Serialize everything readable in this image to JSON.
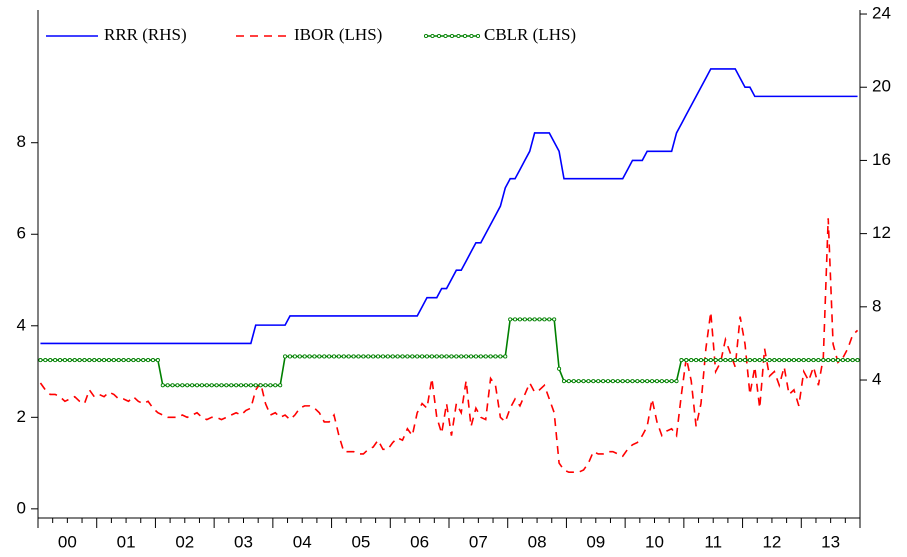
{
  "chart_data": {
    "type": "line",
    "categories": [
      "00",
      "01",
      "02",
      "03",
      "04",
      "05",
      "06",
      "07",
      "08",
      "09",
      "10",
      "11",
      "12",
      "13"
    ],
    "ylim": [
      -0.2,
      10.9
    ],
    "yticks": [
      0,
      2,
      4,
      6,
      8
    ],
    "y2lim": [
      -3.54,
      24.22
    ],
    "y2ticks": [
      4,
      8,
      12,
      16,
      20,
      24
    ],
    "legend": "upper left",
    "series": [
      {
        "name": "RRR (RHS)",
        "color": "#0000ff",
        "axis": "y2",
        "dash": "solid",
        "marker": "none",
        "values": [
          [
            6,
            6,
            6,
            6,
            6,
            6,
            6,
            6,
            6,
            6,
            6,
            6
          ],
          [
            6,
            6,
            6,
            6,
            6,
            6,
            6,
            6,
            6,
            6,
            6,
            6
          ],
          [
            6,
            6,
            6,
            6,
            6,
            6,
            6,
            6,
            6,
            6,
            6,
            6
          ],
          [
            6,
            6,
            6,
            6,
            6,
            6,
            6,
            6,
            7,
            7,
            7,
            7
          ],
          [
            7,
            7,
            7,
            7.5,
            7.5,
            7.5,
            7.5,
            7.5,
            7.5,
            7.5,
            7.5,
            7.5
          ],
          [
            7.5,
            7.5,
            7.5,
            7.5,
            7.5,
            7.5,
            7.5,
            7.5,
            7.5,
            7.5,
            7.5,
            7.5
          ],
          [
            7.5,
            7.5,
            7.5,
            7.5,
            7.5,
            7.5,
            8,
            8.5,
            8.5,
            8.5,
            9,
            9
          ],
          [
            9.5,
            10,
            10,
            10.5,
            11,
            11.5,
            11.5,
            12,
            12.5,
            13,
            13.5,
            14.5
          ],
          [
            15,
            15,
            15.5,
            16,
            16.5,
            17.5,
            17.5,
            17.5,
            17.5,
            17,
            16.5,
            15
          ],
          [
            15,
            15,
            15,
            15,
            15,
            15,
            15,
            15,
            15,
            15,
            15,
            15
          ],
          [
            15.5,
            16,
            16,
            16,
            16.5,
            16.5,
            16.5,
            16.5,
            16.5,
            16.5,
            17.5,
            18
          ],
          [
            18.5,
            19,
            19.5,
            20,
            20.5,
            21,
            21,
            21,
            21,
            21,
            21,
            20.5
          ],
          [
            20,
            20,
            19.5,
            19.5,
            19.5,
            19.5,
            19.5,
            19.5,
            19.5,
            19.5,
            19.5,
            19.5
          ],
          [
            19.5,
            19.5,
            19.5,
            19.5,
            19.5,
            19.5,
            19.5,
            19.5,
            19.5,
            19.5,
            19.5,
            19.5
          ]
        ]
      },
      {
        "name": "IBOR (LHS)",
        "color": "#ff0000",
        "axis": "y",
        "dash": "dashed",
        "marker": "none",
        "values": [
          [
            2.75,
            2.6,
            2.5,
            2.5,
            2.45,
            2.35,
            2.4,
            2.45,
            2.35,
            2.3,
            2.6,
            2.45
          ],
          [
            2.5,
            2.45,
            2.55,
            2.5,
            2.4,
            2.4,
            2.35,
            2.45,
            2.35,
            2.3,
            2.35,
            2.2
          ],
          [
            2.1,
            2.05,
            2.0,
            2.0,
            2.0,
            2.05,
            2.0,
            2.05,
            2.1,
            2.0,
            1.95,
            2.0
          ],
          [
            2.0,
            1.95,
            2.0,
            2.05,
            2.1,
            2.05,
            2.15,
            2.2,
            2.6,
            2.75,
            2.3,
            2.05
          ],
          [
            2.1,
            2.0,
            2.05,
            1.95,
            2.05,
            2.2,
            2.25,
            2.25,
            2.2,
            2.1,
            1.9,
            1.9
          ],
          [
            2.05,
            1.6,
            1.25,
            1.25,
            1.25,
            1.2,
            1.2,
            1.3,
            1.35,
            1.5,
            1.3,
            1.3
          ],
          [
            1.45,
            1.55,
            1.5,
            1.75,
            1.6,
            2.1,
            2.3,
            2.2,
            2.85,
            2.0,
            1.65,
            2.3
          ],
          [
            1.6,
            2.3,
            2.1,
            2.8,
            1.8,
            2.2,
            2.0,
            1.95,
            2.85,
            2.7,
            2.0,
            1.9
          ],
          [
            2.2,
            2.4,
            2.25,
            2.5,
            2.75,
            2.55,
            2.6,
            2.7,
            2.4,
            2.1,
            1.0,
            0.85
          ],
          [
            0.8,
            0.8,
            0.8,
            0.85,
            1.0,
            1.25,
            1.2,
            1.2,
            1.25,
            1.25,
            1.2,
            1.15
          ],
          [
            1.3,
            1.4,
            1.45,
            1.6,
            1.8,
            2.4,
            1.9,
            1.6,
            1.7,
            1.75,
            1.6,
            2.5
          ],
          [
            3.3,
            2.8,
            1.8,
            2.3,
            3.5,
            4.3,
            3.0,
            3.2,
            3.7,
            3.4,
            3.1,
            4.2
          ],
          [
            3.6,
            2.5,
            3.1,
            2.2,
            3.5,
            2.9,
            3.0,
            2.7,
            3.1,
            2.5,
            2.6,
            2.25
          ],
          [
            3.0,
            2.8,
            3.1,
            2.7,
            3.3,
            6.35,
            3.6,
            3.2,
            3.3,
            3.5,
            3.8,
            3.9
          ]
        ]
      },
      {
        "name": "CBLR (LHS)",
        "color": "#008000",
        "axis": "y",
        "dash": "solid",
        "marker": "circle",
        "values": [
          [
            3.25,
            3.25,
            3.25,
            3.25,
            3.25,
            3.25,
            3.25,
            3.25,
            3.25,
            3.25,
            3.25,
            3.25
          ],
          [
            3.25,
            3.25,
            3.25,
            3.25,
            3.25,
            3.25,
            3.25,
            3.25,
            3.25,
            3.25,
            3.25,
            3.25
          ],
          [
            3.25,
            2.7,
            2.7,
            2.7,
            2.7,
            2.7,
            2.7,
            2.7,
            2.7,
            2.7,
            2.7,
            2.7
          ],
          [
            2.7,
            2.7,
            2.7,
            2.7,
            2.7,
            2.7,
            2.7,
            2.7,
            2.7,
            2.7,
            2.7,
            2.7
          ],
          [
            2.7,
            2.7,
            3.33,
            3.33,
            3.33,
            3.33,
            3.33,
            3.33,
            3.33,
            3.33,
            3.33,
            3.33
          ],
          [
            3.33,
            3.33,
            3.33,
            3.33,
            3.33,
            3.33,
            3.33,
            3.33,
            3.33,
            3.33,
            3.33,
            3.33
          ],
          [
            3.33,
            3.33,
            3.33,
            3.33,
            3.33,
            3.33,
            3.33,
            3.33,
            3.33,
            3.33,
            3.33,
            3.33
          ],
          [
            3.33,
            3.33,
            3.33,
            3.33,
            3.33,
            3.33,
            3.33,
            3.33,
            3.33,
            3.33,
            3.33,
            3.33
          ],
          [
            4.14,
            4.14,
            4.14,
            4.14,
            4.14,
            4.14,
            4.14,
            4.14,
            4.14,
            4.14,
            3.06,
            2.79
          ],
          [
            2.79,
            2.79,
            2.79,
            2.79,
            2.79,
            2.79,
            2.79,
            2.79,
            2.79,
            2.79,
            2.79,
            2.79
          ],
          [
            2.79,
            2.79,
            2.79,
            2.79,
            2.79,
            2.79,
            2.79,
            2.79,
            2.79,
            2.79,
            2.79,
            3.25
          ],
          [
            3.25,
            3.25,
            3.25,
            3.25,
            3.25,
            3.25,
            3.25,
            3.25,
            3.25,
            3.25,
            3.25,
            3.25
          ],
          [
            3.25,
            3.25,
            3.25,
            3.25,
            3.25,
            3.25,
            3.25,
            3.25,
            3.25,
            3.25,
            3.25,
            3.25
          ],
          [
            3.25,
            3.25,
            3.25,
            3.25,
            3.25,
            3.25,
            3.25,
            3.25,
            3.25,
            3.25,
            3.25,
            3.25
          ]
        ]
      }
    ]
  }
}
